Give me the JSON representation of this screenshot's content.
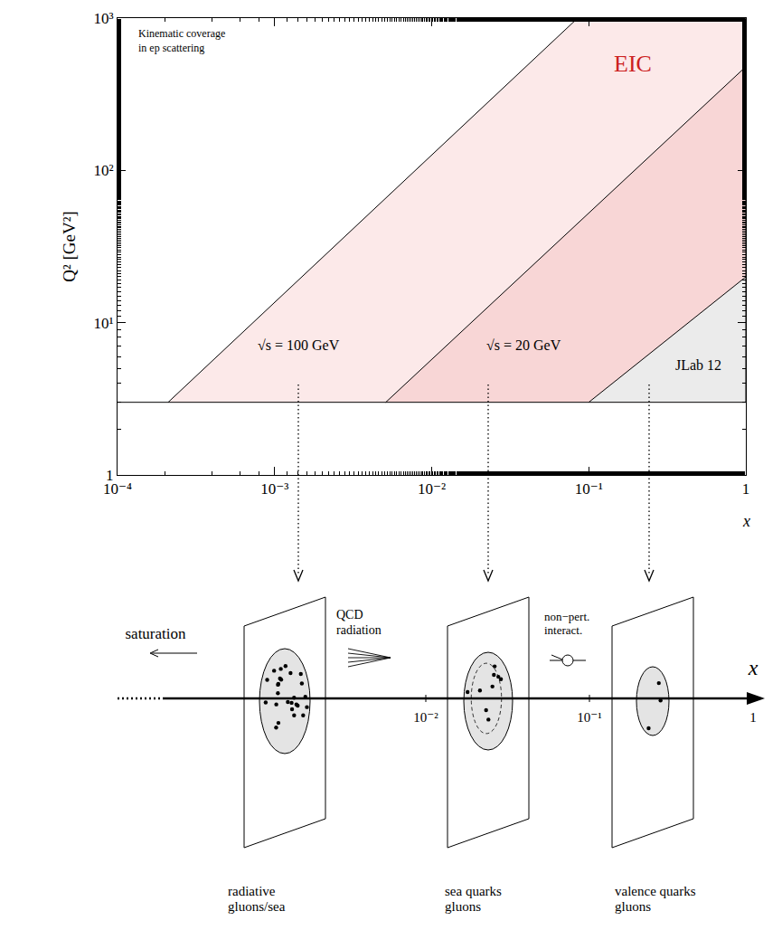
{
  "chart_data": {
    "type": "area",
    "x_label": "x",
    "y_label": "Q² [GeV²]",
    "log": true,
    "grid": false,
    "xlim": [
      0.0001,
      1
    ],
    "ylim": [
      1,
      1000
    ],
    "xticks": [
      {
        "value": 0.0001,
        "label": "10⁻⁴"
      },
      {
        "value": 0.001,
        "label": "10⁻³"
      },
      {
        "value": 0.01,
        "label": "10⁻²"
      },
      {
        "value": 0.1,
        "label": "10⁻¹"
      },
      1
    ],
    "yticks": [
      1,
      {
        "value": 10,
        "label": "10¹"
      },
      {
        "value": 100,
        "label": "10²"
      },
      {
        "value": 1000,
        "label": "10³"
      }
    ],
    "series": [
      {
        "name": "√s = 100 GeV",
        "color": "#fce9e9",
        "x": [
          0.00021,
          0.085
        ],
        "values": [
          3,
          1000
        ]
      },
      {
        "name": "√s = 20 GeV",
        "color": "#f8d6d6",
        "x": [
          0.0051,
          1
        ],
        "values": [
          3,
          480
        ]
      },
      {
        "name": "JLab 12",
        "color": "#ebebeb",
        "x": [
          0.1,
          1
        ],
        "values": [
          3,
          20
        ]
      }
    ],
    "annotations": [
      [
        "Kinematic coverage",
        "in ep scattering"
      ],
      [
        "EIC"
      ]
    ]
  },
  "diagram": {
    "axis_label": "x",
    "ticks": [
      {
        "value": 0.01,
        "label": "10⁻²"
      },
      {
        "value": 0.1,
        "label": "10⁻¹"
      },
      1
    ],
    "saturation": "saturation",
    "processes": [
      [
        "QCD",
        "radiation"
      ],
      [
        "non−pert.",
        "interact."
      ]
    ],
    "planes": [
      [
        "radiative",
        "gluons/sea"
      ],
      [
        "sea quarks",
        "gluons"
      ],
      [
        "valence quarks",
        "gluons"
      ]
    ]
  }
}
